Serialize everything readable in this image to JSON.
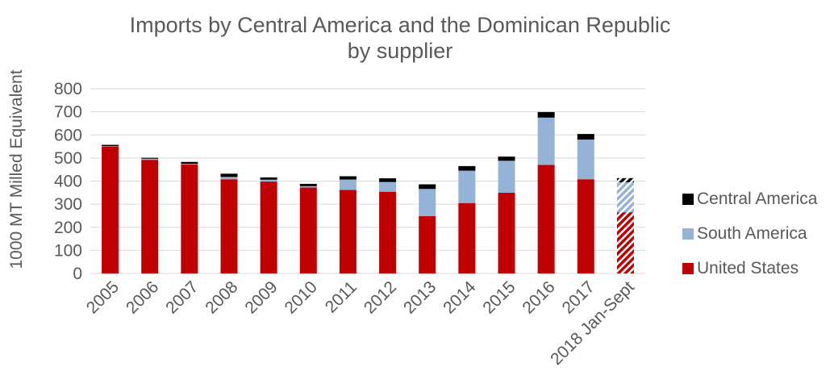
{
  "chart_data": {
    "type": "bar",
    "stacked": true,
    "title_lines": [
      "Imports by Central America and the Dominican Republic",
      "by supplier"
    ],
    "xlabel": "",
    "ylabel": "1000 MT Milled Equivalent",
    "ylim": [
      0,
      800
    ],
    "yticks": [
      0,
      100,
      200,
      300,
      400,
      500,
      600,
      700,
      800
    ],
    "grid": true,
    "legend_position": "right",
    "categories": [
      "2005",
      "2006",
      "2007",
      "2008",
      "2009",
      "2010",
      "2011",
      "2012",
      "2013",
      "2014",
      "2015",
      "2016",
      "2017",
      "2018 Jan-Sept"
    ],
    "partial_categories": [
      "2018 Jan-Sept"
    ],
    "series": [
      {
        "name": "United States",
        "color": "#c00000",
        "values": [
          550,
          492,
          472,
          408,
          398,
          372,
          362,
          354,
          248,
          305,
          350,
          470,
          408,
          265
        ]
      },
      {
        "name": "South America",
        "color": "#95b3d7",
        "values": [
          2,
          5,
          3,
          10,
          8,
          6,
          45,
          42,
          118,
          140,
          138,
          205,
          172,
          130
        ]
      },
      {
        "name": "Central America",
        "color": "#000000",
        "values": [
          5,
          4,
          8,
          14,
          10,
          10,
          14,
          16,
          20,
          20,
          18,
          24,
          24,
          18
        ]
      }
    ],
    "legend_order": [
      "Central America",
      "South America",
      "United States"
    ]
  }
}
